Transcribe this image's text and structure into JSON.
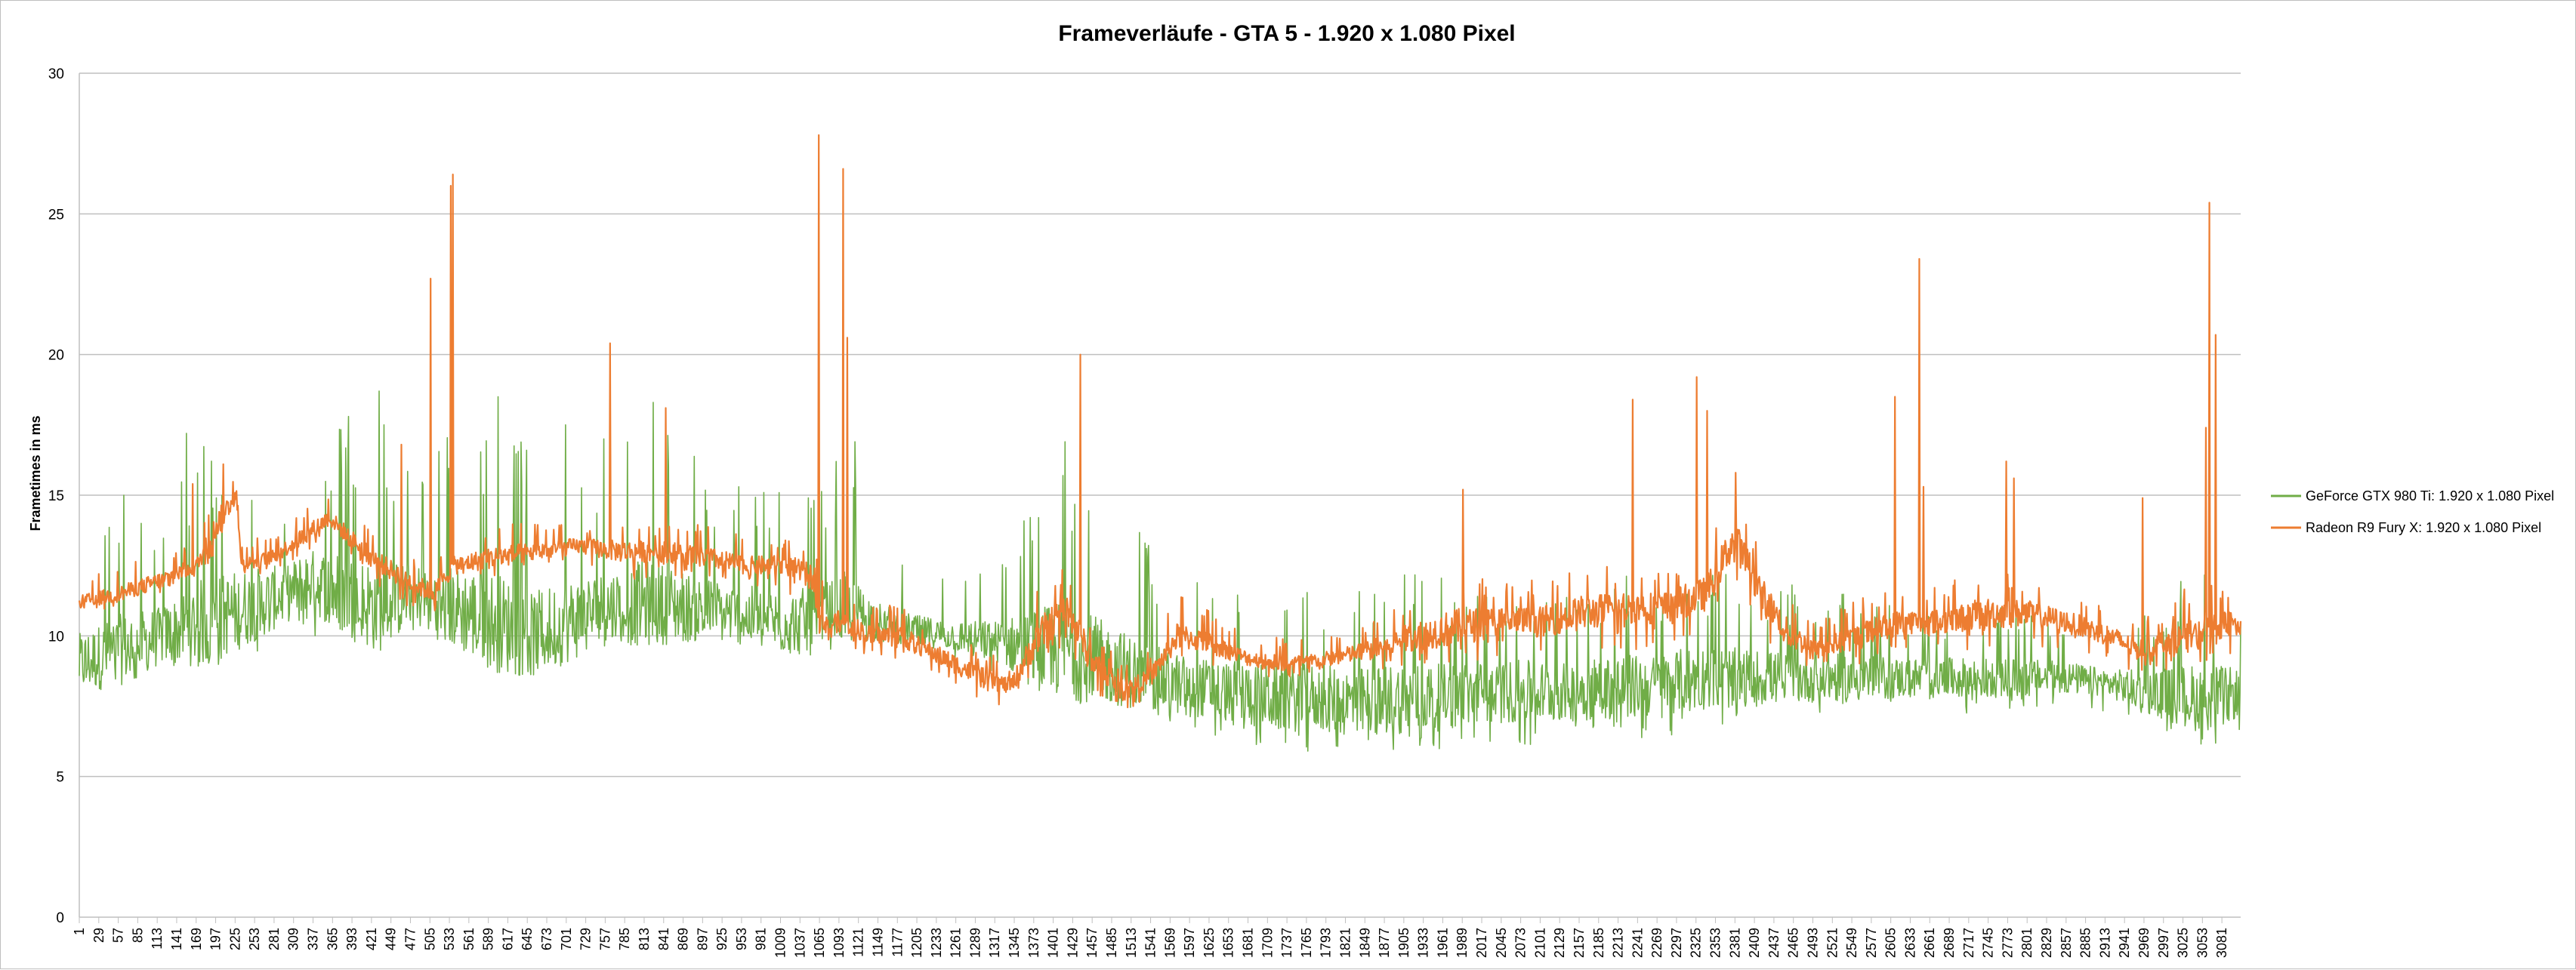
{
  "chart_data": {
    "type": "line",
    "title": "Frameverläufe - GTA 5 - 1.920 x 1.080 Pixel",
    "xlabel": "",
    "ylabel": "Frametimes in ms",
    "ylim": [
      0,
      30
    ],
    "yticks": [
      "0",
      "5",
      "10",
      "15",
      "20",
      "25",
      "30"
    ],
    "xlim": [
      1,
      3108
    ],
    "x_tick_start": 1,
    "x_tick_step": 28,
    "grid": "horizontal",
    "legend_position": "right",
    "series": [
      {
        "name": "GeForce GTX 980 Ti: 1.920 x 1.080 Pixel",
        "color": "#70ad47",
        "envelope": [
          [
            1,
            9.0,
            8.3,
            14.0
          ],
          [
            60,
            9.5,
            8.3,
            15.0
          ],
          [
            120,
            10.0,
            8.6,
            14.0
          ],
          [
            180,
            10.5,
            8.8,
            17.2
          ],
          [
            240,
            11.0,
            9.2,
            16.5
          ],
          [
            300,
            11.5,
            9.6,
            15.0
          ],
          [
            330,
            12.0,
            9.8,
            15.5
          ],
          [
            380,
            11.5,
            10.0,
            17.8
          ],
          [
            430,
            11.0,
            10.0,
            18.7
          ],
          [
            480,
            11.5,
            10.2,
            16.0
          ],
          [
            540,
            11.0,
            9.7,
            17.5
          ],
          [
            600,
            10.5,
            9.0,
            18.5
          ],
          [
            650,
            10.0,
            8.5,
            16.5
          ],
          [
            700,
            10.5,
            9.6,
            17.5
          ],
          [
            760,
            11.0,
            10.0,
            17.0
          ],
          [
            820,
            11.2,
            10.0,
            18.3
          ],
          [
            880,
            11.0,
            10.0,
            16.5
          ],
          [
            940,
            10.8,
            10.0,
            15.5
          ],
          [
            1000,
            10.5,
            9.8,
            16.0
          ],
          [
            1060,
            10.5,
            9.8,
            16.2
          ],
          [
            1100,
            11.0,
            10.0,
            16.8
          ],
          [
            1150,
            10.5,
            9.8,
            13.5
          ],
          [
            1200,
            10.2,
            9.6,
            12.5
          ],
          [
            1260,
            10.0,
            9.2,
            12.0
          ],
          [
            1320,
            9.8,
            8.6,
            12.5
          ],
          [
            1380,
            9.5,
            8.0,
            15.8
          ],
          [
            1420,
            9.5,
            7.6,
            16.9
          ],
          [
            1480,
            9.0,
            7.4,
            15.0
          ],
          [
            1540,
            8.5,
            7.2,
            13.5
          ],
          [
            1600,
            8.2,
            6.5,
            12.0
          ],
          [
            1660,
            8.0,
            6.2,
            12.0
          ],
          [
            1720,
            7.8,
            6.0,
            12.5
          ],
          [
            1780,
            7.8,
            5.8,
            12.0
          ],
          [
            1840,
            7.6,
            5.6,
            12.3
          ],
          [
            1900,
            7.8,
            5.8,
            12.5
          ],
          [
            1960,
            7.8,
            6.0,
            12.3
          ],
          [
            2020,
            8.0,
            6.2,
            12.0
          ],
          [
            2080,
            8.0,
            6.0,
            12.0
          ],
          [
            2140,
            8.0,
            6.0,
            11.5
          ],
          [
            2200,
            8.2,
            6.2,
            12.5
          ],
          [
            2260,
            8.2,
            6.3,
            12.0
          ],
          [
            2320,
            8.5,
            6.5,
            12.5
          ],
          [
            2380,
            8.5,
            6.8,
            12.5
          ],
          [
            2440,
            8.5,
            7.0,
            12.0
          ],
          [
            2500,
            8.5,
            7.0,
            11.5
          ],
          [
            2560,
            8.5,
            7.0,
            11.5
          ],
          [
            2620,
            8.5,
            7.2,
            11.0
          ],
          [
            2680,
            8.5,
            7.2,
            11.0
          ],
          [
            2740,
            8.5,
            7.3,
            11.0
          ],
          [
            2800,
            8.5,
            7.4,
            11.0
          ],
          [
            2860,
            8.5,
            7.5,
            10.5
          ],
          [
            2920,
            8.3,
            7.3,
            10.0
          ],
          [
            2980,
            8.0,
            6.8,
            11.0
          ],
          [
            3040,
            7.8,
            6.2,
            12.5
          ],
          [
            3080,
            7.8,
            6.0,
            12.0
          ],
          [
            3108,
            8.0,
            6.2,
            10.5
          ]
        ],
        "spikes": [
          [
            65,
            15.0
          ],
          [
            90,
            14.0
          ],
          [
            155,
            17.2
          ],
          [
            206,
            15.0
          ],
          [
            388,
            17.8
          ],
          [
            432,
            18.7
          ],
          [
            603,
            18.5
          ],
          [
            644,
            16.6
          ],
          [
            700,
            17.5
          ],
          [
            755,
            17.0
          ],
          [
            826,
            18.3
          ],
          [
            1089,
            16.2
          ],
          [
            1116,
            16.9
          ],
          [
            1418,
            16.9
          ],
          [
            1415,
            15.7
          ]
        ]
      },
      {
        "name": "Radeon R9 Fury X: 1.920 x 1.080 Pixel",
        "color": "#ed7d31",
        "envelope": [
          [
            1,
            11.2,
            10.8,
            12.0
          ],
          [
            60,
            11.5,
            11.0,
            12.5
          ],
          [
            120,
            12.0,
            11.5,
            13.0
          ],
          [
            170,
            12.5,
            12.0,
            13.5
          ],
          [
            200,
            14.0,
            13.0,
            15.5
          ],
          [
            225,
            15.0,
            14.0,
            15.8
          ],
          [
            235,
            12.5,
            12.0,
            13.5
          ],
          [
            280,
            12.8,
            12.2,
            13.5
          ],
          [
            320,
            13.5,
            12.8,
            14.5
          ],
          [
            360,
            14.2,
            13.5,
            15.0
          ],
          [
            390,
            13.5,
            12.8,
            14.5
          ],
          [
            420,
            12.8,
            12.0,
            13.8
          ],
          [
            470,
            12.0,
            11.0,
            13.0
          ],
          [
            510,
            11.5,
            10.8,
            12.5
          ],
          [
            540,
            12.5,
            11.8,
            13.5
          ],
          [
            600,
            12.8,
            12.0,
            14.0
          ],
          [
            660,
            13.0,
            12.2,
            14.0
          ],
          [
            720,
            13.2,
            12.5,
            14.0
          ],
          [
            780,
            13.0,
            12.0,
            14.0
          ],
          [
            840,
            13.0,
            12.0,
            14.0
          ],
          [
            900,
            12.8,
            12.0,
            14.0
          ],
          [
            960,
            12.5,
            11.8,
            13.5
          ],
          [
            1020,
            12.5,
            11.5,
            13.5
          ],
          [
            1060,
            12.0,
            11.0,
            13.5
          ],
          [
            1065,
            10.5,
            9.8,
            12.0
          ],
          [
            1100,
            10.5,
            9.8,
            11.8
          ],
          [
            1140,
            10.0,
            9.2,
            11.0
          ],
          [
            1180,
            10.0,
            9.2,
            11.2
          ],
          [
            1220,
            9.5,
            8.8,
            10.5
          ],
          [
            1260,
            9.0,
            8.2,
            10.0
          ],
          [
            1300,
            8.5,
            7.6,
            9.5
          ],
          [
            1340,
            8.2,
            7.5,
            9.0
          ],
          [
            1380,
            10.0,
            8.8,
            12.0
          ],
          [
            1420,
            11.0,
            9.5,
            12.5
          ],
          [
            1460,
            9.0,
            8.0,
            10.5
          ],
          [
            1500,
            8.0,
            7.2,
            9.0
          ],
          [
            1540,
            8.5,
            7.8,
            9.5
          ],
          [
            1580,
            10.0,
            9.0,
            11.5
          ],
          [
            1620,
            9.8,
            9.0,
            11.0
          ],
          [
            1680,
            9.2,
            8.6,
            10.0
          ],
          [
            1740,
            9.0,
            8.5,
            10.0
          ],
          [
            1800,
            9.2,
            8.6,
            10.0
          ],
          [
            1860,
            9.5,
            8.6,
            10.5
          ],
          [
            1920,
            10.0,
            8.8,
            11.5
          ],
          [
            1980,
            10.3,
            9.0,
            12.5
          ],
          [
            2040,
            10.5,
            9.2,
            12.0
          ],
          [
            2100,
            10.5,
            9.2,
            12.0
          ],
          [
            2160,
            10.8,
            9.2,
            12.5
          ],
          [
            2220,
            11.0,
            9.5,
            12.5
          ],
          [
            2280,
            11.0,
            9.5,
            12.5
          ],
          [
            2340,
            11.5,
            9.8,
            13.0
          ],
          [
            2380,
            13.5,
            12.0,
            15.5
          ],
          [
            2420,
            11.5,
            10.0,
            13.0
          ],
          [
            2460,
            10.0,
            9.0,
            11.5
          ],
          [
            2500,
            9.5,
            8.8,
            10.5
          ],
          [
            2560,
            10.0,
            9.0,
            11.5
          ],
          [
            2620,
            10.5,
            9.5,
            11.8
          ],
          [
            2680,
            10.5,
            9.5,
            11.8
          ],
          [
            2740,
            10.8,
            9.5,
            12.5
          ],
          [
            2800,
            10.8,
            9.5,
            12.0
          ],
          [
            2860,
            10.5,
            9.5,
            11.5
          ],
          [
            2920,
            10.0,
            9.0,
            11.0
          ],
          [
            2960,
            9.5,
            8.6,
            10.5
          ],
          [
            3000,
            9.8,
            8.8,
            11.0
          ],
          [
            3040,
            10.0,
            9.0,
            12.0
          ],
          [
            3080,
            10.3,
            9.2,
            12.0
          ],
          [
            3108,
            10.5,
            9.5,
            11.5
          ]
        ],
        "spikes": [
          [
            164,
            15.4
          ],
          [
            208,
            16.1
          ],
          [
            464,
            16.8
          ],
          [
            506,
            22.7
          ],
          [
            538,
            26.4
          ],
          [
            535,
            26.0
          ],
          [
            764,
            20.4
          ],
          [
            844,
            18.1
          ],
          [
            1064,
            27.8
          ],
          [
            1099,
            26.6
          ],
          [
            1105,
            20.6
          ],
          [
            1440,
            20.0
          ],
          [
            1990,
            15.2
          ],
          [
            2234,
            18.4
          ],
          [
            2326,
            19.2
          ],
          [
            2341,
            18.0
          ],
          [
            2382,
            15.8
          ],
          [
            2611,
            18.5
          ],
          [
            2646,
            23.4
          ],
          [
            2652,
            15.3
          ],
          [
            2771,
            16.2
          ],
          [
            2782,
            15.6
          ],
          [
            2967,
            14.9
          ],
          [
            3063,
            25.4
          ],
          [
            3072,
            20.7
          ],
          [
            3058,
            17.4
          ]
        ]
      }
    ]
  }
}
